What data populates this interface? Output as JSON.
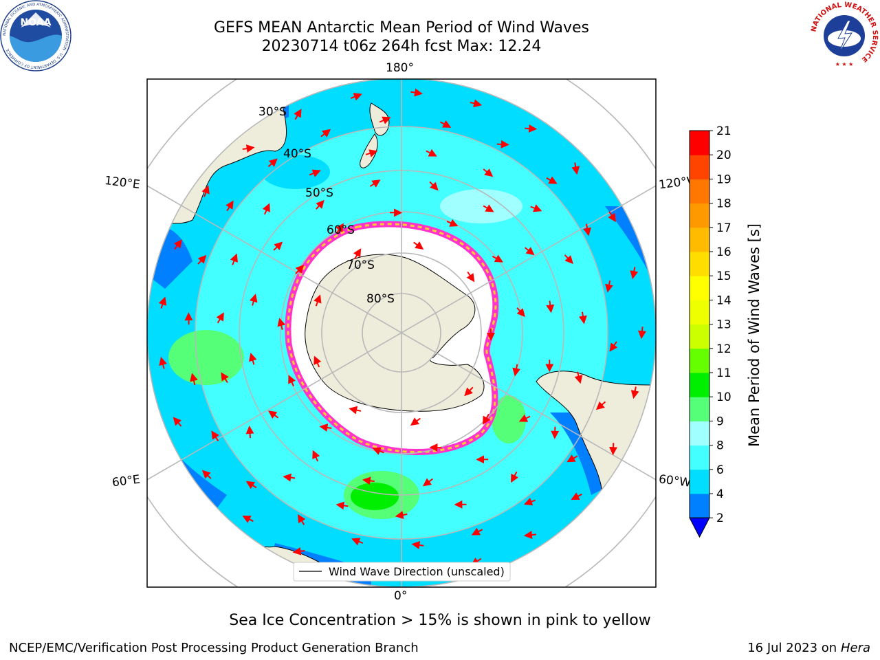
{
  "header": {
    "title": "GEFS MEAN Antarctic Mean Period of Wind Waves",
    "subtitle": "20230714 t06z 264h fcst   Max: 12.24"
  },
  "logos": {
    "noaa": {
      "text": "NOAA",
      "ring_text": "NATIONAL OCEANIC AND ATMOSPHERIC ADMINISTRATION · U.S. DEPARTMENT OF COMMERCE"
    },
    "nws": {
      "ring_text": "NATIONAL WEATHER SERVICE"
    }
  },
  "map": {
    "longitude_labels": {
      "top": "180°",
      "bottom": "0°",
      "upper_left": "120°E",
      "upper_right": "120°W",
      "lower_left": "60°E",
      "lower_right": "60°W"
    },
    "latitude_labels": [
      "30°S",
      "40°S",
      "50°S",
      "60°S",
      "70°S",
      "80°S"
    ],
    "legend": "Wind Wave Direction (unscaled)",
    "colors": {
      "land": "#eeeddc",
      "sea_ice": "#ffffff",
      "ice_edge": [
        "#ff33cc",
        "#ffcc33"
      ],
      "arrows": "#ff0000",
      "graticule": "#b8b8b8",
      "outside_domain": "#ffffff"
    }
  },
  "colorbar": {
    "label": "Mean Period of Wind Waves [s]",
    "ticks": [
      "2",
      "4",
      "6",
      "8",
      "9",
      "10",
      "11",
      "12",
      "13",
      "14",
      "15",
      "16",
      "17",
      "18",
      "19",
      "20",
      "21"
    ],
    "colors": [
      "#0080ff",
      "#00ddff",
      "#44ffff",
      "#a0ffff",
      "#55ff77",
      "#00ee00",
      "#66ff00",
      "#ccff00",
      "#eeff00",
      "#ffff00",
      "#ffdd00",
      "#ffbb00",
      "#ff9900",
      "#ff7700",
      "#ff4400",
      "#ff0000"
    ],
    "under_color": "#0000ff"
  },
  "caption": "Sea Ice Concentration > 15% is shown in pink to yellow",
  "footer": {
    "left": "NCEP/EMC/Verification Post Processing Product Generation Branch",
    "right_prefix": "16 Jul 2023 on ",
    "right_machine": "Hera"
  }
}
